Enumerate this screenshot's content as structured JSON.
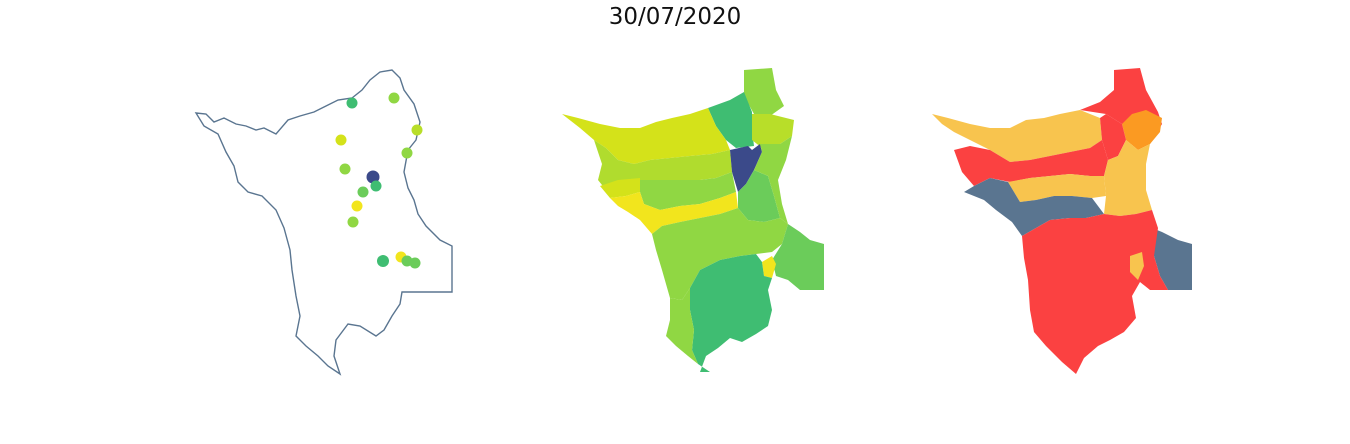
{
  "title": "30/07/2020",
  "colors": {
    "outline": "#5a7590",
    "viridis_dark": "#3b4a8a",
    "viridis_teal": "#3fbd72",
    "viridis_green": "#6bcc5a",
    "viridis_lime": "#90d743",
    "viridis_yellowgreen": "#b8de29",
    "viridis_yellow": "#d4e21a",
    "viridis_bright": "#f2e51d",
    "risk_high": "#fb4141",
    "risk_medium": "#f8c44e",
    "risk_orange": "#fb9a22",
    "risk_none": "#5a7590"
  },
  "panels": [
    {
      "name": "station-points-map"
    },
    {
      "name": "interpolated-choropleth-map"
    },
    {
      "name": "risk-category-map"
    }
  ]
}
